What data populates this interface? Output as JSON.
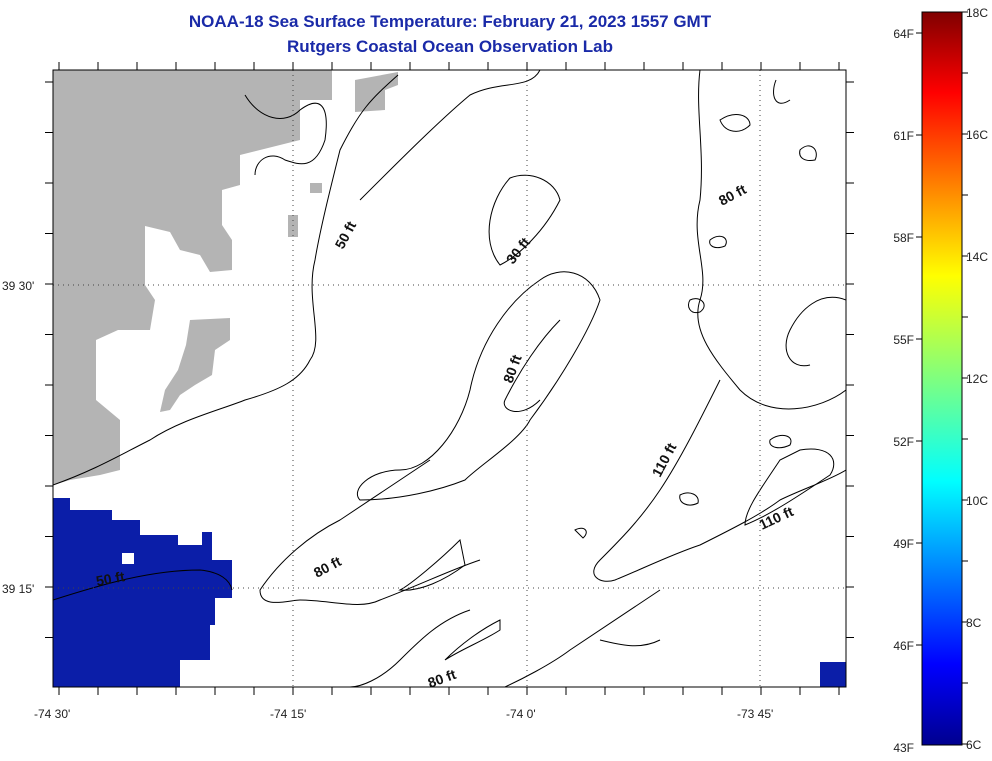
{
  "header": {
    "title": "NOAA-18 Sea Surface Temperature:  February 21, 2023 1557 GMT",
    "subtitle": "Rutgers Coastal Ocean Observation Lab"
  },
  "map": {
    "lon_labels": [
      "-74 30'",
      "-74 15'",
      "-74 0'",
      "-73 45'"
    ],
    "lat_labels": [
      "39 30'",
      "39 15'"
    ],
    "contour_labels": [
      "50 ft",
      "30 ft",
      "80 ft",
      "80 ft",
      "80 ft",
      "110 ft",
      "110 ft",
      "80 ft",
      "50 ft"
    ],
    "colors": {
      "land": "#b4b4b4",
      "water_sst": "#0b1ea8",
      "contour": "#000000",
      "grid": "#000000"
    }
  },
  "colorbar": {
    "fahrenheit_labels": [
      "64F",
      "61F",
      "58F",
      "55F",
      "52F",
      "49F",
      "46F",
      "43F"
    ],
    "celsius_labels": [
      "18C",
      "16C",
      "14C",
      "12C",
      "10C",
      "8C",
      "6C"
    ],
    "range_c": [
      6,
      18
    ],
    "colormap": "jet"
  }
}
